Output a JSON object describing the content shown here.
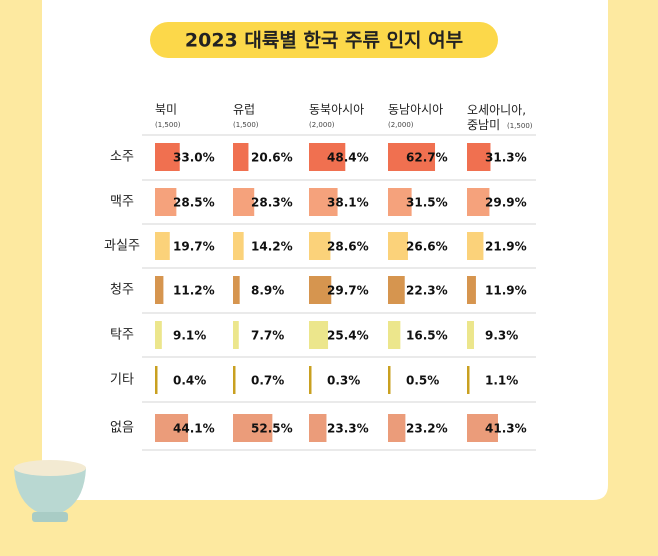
{
  "chart_data": {
    "type": "table-bar",
    "title": "2023 대륙별 한국 주류 인지 여부",
    "categories": [
      "소주",
      "맥주",
      "과실주",
      "청주",
      "탁주",
      "기타",
      "없음"
    ],
    "category_colors": [
      "#f07050",
      "#f5a27c",
      "#fbd27a",
      "#d6954f",
      "#ece68c",
      "#c9a020",
      "#eb9c7a"
    ],
    "series": [
      {
        "name": "북미",
        "sample": "(1,500)",
        "values": [
          33.0,
          28.5,
          19.7,
          11.2,
          9.1,
          0.4,
          44.1
        ],
        "value_labels": [
          "33.0%",
          "28.5%",
          "19.7%",
          "11.2%",
          "9.1%",
          "0.4%",
          "44.1%"
        ]
      },
      {
        "name": "유럽",
        "sample": "(1,500)",
        "values": [
          20.6,
          28.3,
          14.2,
          8.9,
          7.7,
          0.7,
          52.5
        ],
        "value_labels": [
          "20.6%",
          "28.3%",
          "14.2%",
          "8.9%",
          "7.7%",
          "0.7%",
          "52.5%"
        ]
      },
      {
        "name": "동북아시아",
        "sample": "(2,000)",
        "values": [
          48.4,
          38.1,
          28.6,
          29.7,
          25.4,
          0.3,
          23.3
        ],
        "value_labels": [
          "48.4%",
          "38.1%",
          "28.6%",
          "29.7%",
          "25.4%",
          "0.3%",
          "23.3%"
        ]
      },
      {
        "name": "동남아시아",
        "sample": "(2,000)",
        "values": [
          62.7,
          31.5,
          26.6,
          22.3,
          16.5,
          0.5,
          23.2
        ],
        "value_labels": [
          "62.7%",
          "31.5%",
          "26.6%",
          "22.3%",
          "16.5%",
          "0.5%",
          "23.2%"
        ]
      },
      {
        "name": "오세아니아, 중남미",
        "sample": "(1,500)",
        "values": [
          31.3,
          29.9,
          21.9,
          11.9,
          9.3,
          1.1,
          41.3
        ],
        "value_labels": [
          "31.3%",
          "29.9%",
          "21.9%",
          "11.9%",
          "9.3%",
          "1.1%",
          "41.3%"
        ]
      }
    ]
  }
}
